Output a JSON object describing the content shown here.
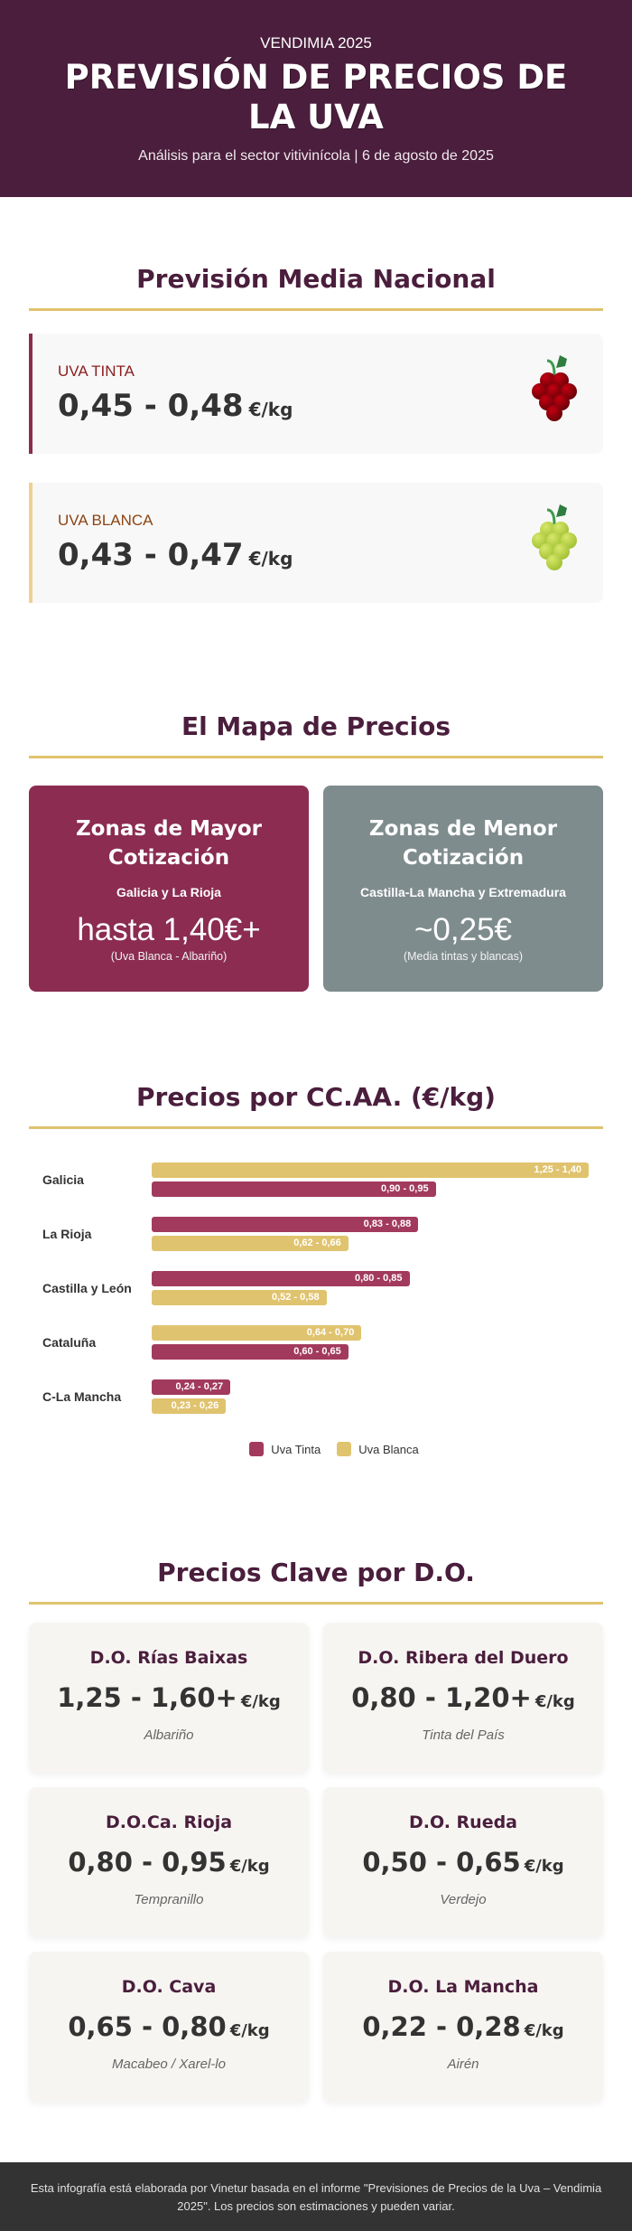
{
  "header": {
    "kicker": "VENDIMIA 2025",
    "title": "PREVISIÓN DE PRECIOS DE LA UVA",
    "subtitle": "Análisis para el sector vitivinícola | 6 de agosto de 2025"
  },
  "national": {
    "title": "Previsión Media Nacional",
    "cards": [
      {
        "label": "UVA TINTA",
        "value": "0,45 - 0,48",
        "unit": "€/kg",
        "icon": "red-grape-icon"
      },
      {
        "label": "UVA BLANCA",
        "value": "0,43 - 0,47",
        "unit": "€/kg",
        "icon": "white-grape-icon"
      }
    ]
  },
  "map": {
    "title": "El Mapa de Precios",
    "zones": [
      {
        "title": "Zonas de Mayor Cotización",
        "regions": "Galicia y La Rioja",
        "price": "hasta 1,40€+",
        "note": "(Uva Blanca - Albariño)",
        "color": "#8b2c50"
      },
      {
        "title": "Zonas de Menor Cotización",
        "regions": "Castilla-La Mancha y Extremadura",
        "price": "~0,25€",
        "note": "(Media tintas y blancas)",
        "color": "#7f8c8d"
      }
    ]
  },
  "regional": {
    "title": "Precios por CC.AA. (€/kg)",
    "legend": [
      {
        "label": "Uva Tinta",
        "color": "#a23a5e"
      },
      {
        "label": "Uva Blanca",
        "color": "#e0c36e"
      }
    ]
  },
  "chart_data": {
    "type": "bar",
    "orientation": "horizontal",
    "title": "Precios por CC.AA. (€/kg)",
    "categories": [
      "Galicia",
      "La Rioja",
      "Castilla y León",
      "Cataluña",
      "C-La Mancha"
    ],
    "series": [
      {
        "name": "Uva Tinta",
        "color": "#a23a5e",
        "ranges": [
          [
            0.9,
            0.95
          ],
          [
            0.83,
            0.88
          ],
          [
            0.8,
            0.85
          ],
          [
            0.6,
            0.65
          ],
          [
            0.24,
            0.27
          ]
        ],
        "labels": [
          "0,90 - 0,95",
          "0,83 - 0,88",
          "0,80 - 0,85",
          "0,60 - 0,65",
          "0,24 - 0,27"
        ],
        "width_pct": [
          65,
          61,
          59,
          45,
          18
        ]
      },
      {
        "name": "Uva Blanca",
        "color": "#e0c36e",
        "ranges": [
          [
            1.25,
            1.4
          ],
          [
            0.62,
            0.66
          ],
          [
            0.52,
            0.58
          ],
          [
            0.64,
            0.7
          ],
          [
            0.23,
            0.26
          ]
        ],
        "labels": [
          "1,25 - 1,40",
          "0,62 - 0,66",
          "0,52 - 0,58",
          "0,64 - 0,70",
          "0,23 - 0,26"
        ],
        "width_pct": [
          100,
          45,
          40,
          48,
          17
        ]
      }
    ],
    "bar_order": [
      [
        "blanca",
        "tinta"
      ],
      [
        "tinta",
        "blanca"
      ],
      [
        "tinta",
        "blanca"
      ],
      [
        "blanca",
        "tinta"
      ],
      [
        "tinta",
        "blanca"
      ]
    ],
    "legend_position": "bottom",
    "grid": false
  },
  "denominations": {
    "title": "Precios Clave por D.O.",
    "items": [
      {
        "name": "D.O. Rías Baixas",
        "price": "1,25 - 1,60+",
        "unit": "€/kg",
        "variety": "Albariño"
      },
      {
        "name": "D.O. Ribera del Duero",
        "price": "0,80 - 1,20+",
        "unit": "€/kg",
        "variety": "Tinta del País"
      },
      {
        "name": "D.O.Ca. Rioja",
        "price": "0,80 - 0,95",
        "unit": "€/kg",
        "variety": "Tempranillo"
      },
      {
        "name": "D.O. Rueda",
        "price": "0,50 - 0,65",
        "unit": "€/kg",
        "variety": "Verdejo"
      },
      {
        "name": "D.O. Cava",
        "price": "0,65 - 0,80",
        "unit": "€/kg",
        "variety": "Macabeo / Xarel-lo"
      },
      {
        "name": "D.O. La Mancha",
        "price": "0,22 - 0,28",
        "unit": "€/kg",
        "variety": "Airén"
      }
    ]
  },
  "footer": {
    "text": "Esta infografía está elaborada por Vinetur basada en el informe \"Previsiones de Precios de la Uva – Vendimia 2025\". Los precios son estimaciones y pueden variar."
  }
}
